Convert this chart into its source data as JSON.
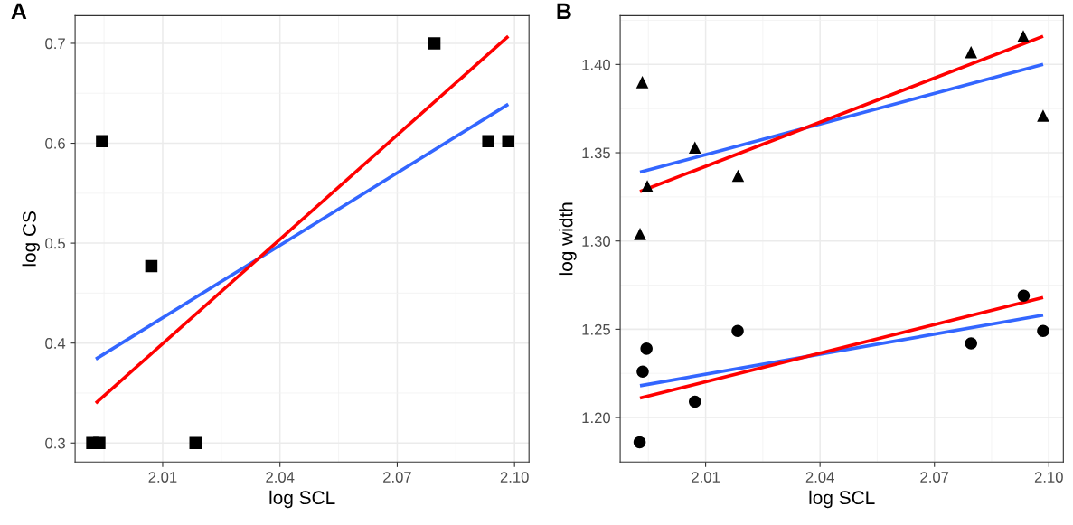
{
  "chart_data": [
    {
      "type": "scatter",
      "title": "A",
      "xlabel": "log SCL",
      "ylabel": "log CS",
      "xlim": [
        1.9876,
        2.1037
      ],
      "ylim": [
        0.281,
        0.7276
      ],
      "xticks": [
        2.01,
        2.04,
        2.07,
        {
          "value": 2.1,
          "label": "2.10"
        }
      ],
      "yticks": [
        0.3,
        0.4,
        0.5,
        0.6,
        0.7
      ],
      "grid": true,
      "series": [
        {
          "marker": "square",
          "color": "#000000",
          "x": [
            1.992,
            1.9938,
            1.9945,
            2.0071,
            2.0184,
            2.0795,
            2.0933,
            2.0984
          ],
          "values": [
            0.3,
            0.3,
            0.602,
            0.477,
            0.3,
            0.7,
            0.602,
            0.602
          ]
        },
        {
          "type": "line",
          "color": "#3366ff",
          "x": [
            1.9929,
            2.0984
          ],
          "values": [
            0.384,
            0.639
          ]
        },
        {
          "type": "line",
          "color": "#ff0000",
          "x": [
            1.9929,
            2.0984
          ],
          "values": [
            0.34,
            0.707
          ]
        }
      ]
    },
    {
      "type": "scatter",
      "title": "B",
      "xlabel": "log SCL",
      "ylabel": "log width",
      "xlim": [
        1.9876,
        2.1038
      ],
      "ylim": [
        1.1748,
        1.4276
      ],
      "xticks": [
        2.01,
        2.04,
        2.07,
        {
          "value": 2.1,
          "label": "2.10"
        }
      ],
      "yticks": [
        {
          "value": 1.2,
          "label": "1.20"
        },
        1.25,
        {
          "value": 1.3,
          "label": "1.30"
        },
        1.35,
        {
          "value": 1.4,
          "label": "1.40"
        }
      ],
      "grid": true,
      "series": [
        {
          "marker": "triangle",
          "color": "#000000",
          "x": [
            1.9934,
            1.9947,
            1.9928,
            2.0072,
            2.0185,
            2.0796,
            2.0933,
            2.0985
          ],
          "values": [
            1.39,
            1.331,
            1.304,
            1.353,
            1.337,
            1.407,
            1.416,
            1.371
          ]
        },
        {
          "marker": "circle",
          "color": "#000000",
          "x": [
            1.9927,
            1.9935,
            1.9945,
            2.0072,
            2.0184,
            2.0796,
            2.0934,
            2.0985
          ],
          "values": [
            1.186,
            1.226,
            1.239,
            1.209,
            1.249,
            1.242,
            1.269,
            1.249
          ]
        },
        {
          "type": "line",
          "color": "#3366ff",
          "x": [
            1.9928,
            2.0985
          ],
          "values": [
            1.339,
            1.4
          ]
        },
        {
          "type": "line",
          "color": "#ff0000",
          "x": [
            1.9928,
            2.0985
          ],
          "values": [
            1.328,
            1.416
          ]
        },
        {
          "type": "line",
          "color": "#3366ff",
          "x": [
            1.9928,
            2.0985
          ],
          "values": [
            1.218,
            1.258
          ]
        },
        {
          "type": "line",
          "color": "#ff0000",
          "x": [
            1.9928,
            2.0985
          ],
          "values": [
            1.211,
            1.268
          ]
        }
      ]
    }
  ]
}
